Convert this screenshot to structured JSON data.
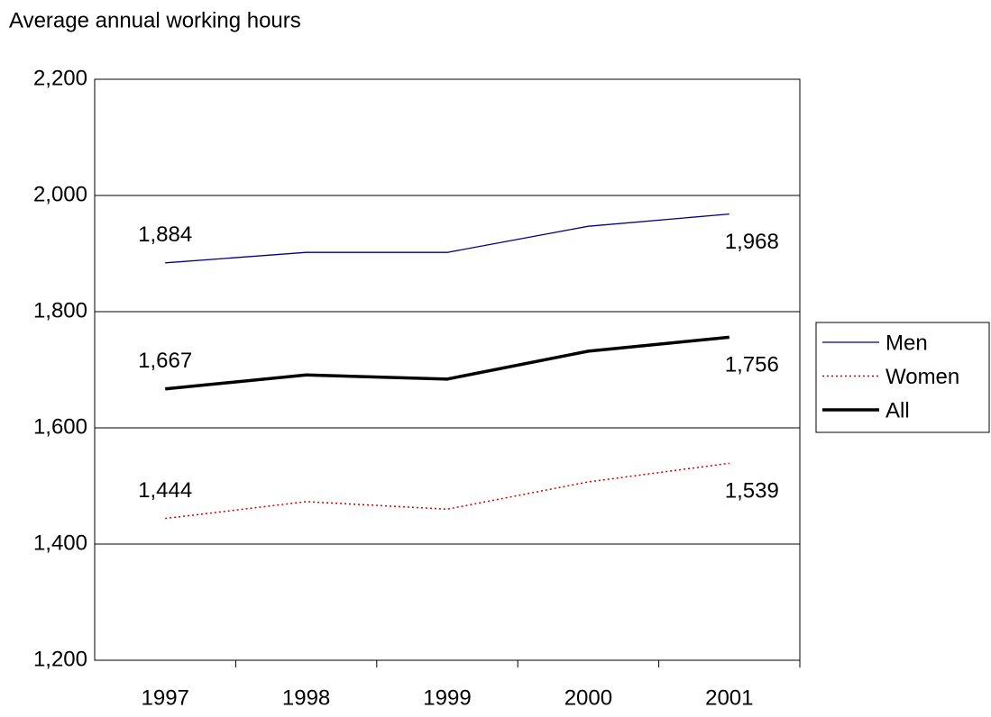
{
  "chart_data": {
    "type": "line",
    "title": "Average annual working hours",
    "categories": [
      "1997",
      "1998",
      "1999",
      "2000",
      "2001"
    ],
    "series": [
      {
        "name": "Men",
        "color": "#000080",
        "line_style": "thin",
        "values": [
          1884,
          1902,
          1902,
          1947,
          1968
        ],
        "value_labels": [
          "1,884",
          null,
          null,
          null,
          "1,968"
        ]
      },
      {
        "name": "Women",
        "color": "#cc0000",
        "line_style": "dotted",
        "values": [
          1444,
          1473,
          1460,
          1507,
          1539
        ],
        "value_labels": [
          "1,444",
          null,
          null,
          null,
          "1,539"
        ]
      },
      {
        "name": "All",
        "color": "#000000",
        "line_style": "thick",
        "values": [
          1667,
          1691,
          1684,
          1732,
          1756
        ],
        "value_labels": [
          "1,667",
          null,
          null,
          null,
          "1,756"
        ]
      }
    ],
    "ylim": [
      1200,
      2200
    ],
    "yticks": [
      {
        "value": 1200,
        "label": "1,200"
      },
      {
        "value": 1400,
        "label": "1,400"
      },
      {
        "value": 1600,
        "label": "1,600"
      },
      {
        "value": 1800,
        "label": "1,800"
      },
      {
        "value": 2000,
        "label": "2,000"
      },
      {
        "value": 2200,
        "label": "2,200"
      }
    ],
    "grid": true,
    "legend": "right"
  }
}
